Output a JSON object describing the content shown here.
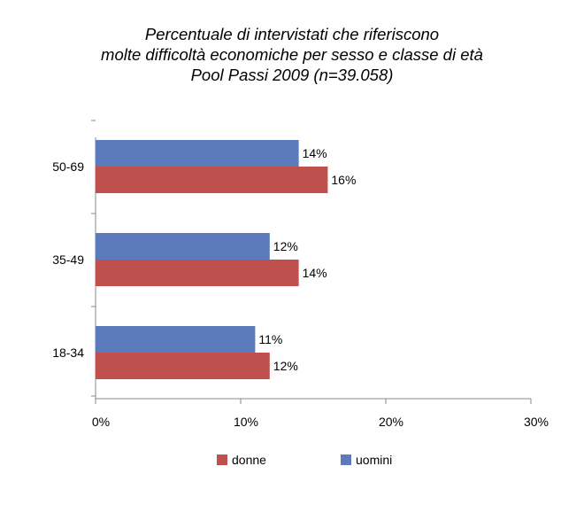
{
  "chart_data": {
    "type": "bar",
    "orientation": "horizontal",
    "title_lines": [
      "Percentuale di intervistati che riferiscono",
      "molte difficoltà economiche per sesso e classe di età",
      "Pool Passi 2009 (n=39.058)"
    ],
    "categories": [
      "50-69",
      "35-49",
      "18-34"
    ],
    "series": [
      {
        "name": "uomini",
        "values": [
          14,
          12,
          11
        ],
        "labels": [
          "14%",
          "12%",
          "11%"
        ],
        "color": "#5b7bbc"
      },
      {
        "name": "donne",
        "values": [
          16,
          14,
          12
        ],
        "labels": [
          "16%",
          "14%",
          "12%"
        ],
        "color": "#c0504d"
      }
    ],
    "xlim": [
      0,
      30
    ],
    "xticks": [
      0,
      10,
      20,
      30
    ],
    "xtick_labels": [
      "0%",
      "10%",
      "20%",
      "30%"
    ],
    "legend": {
      "position": "bottom",
      "items": [
        {
          "name": "donne",
          "color": "#c0504d"
        },
        {
          "name": "uomini",
          "color": "#5b7bbc"
        }
      ]
    },
    "grid": false
  }
}
